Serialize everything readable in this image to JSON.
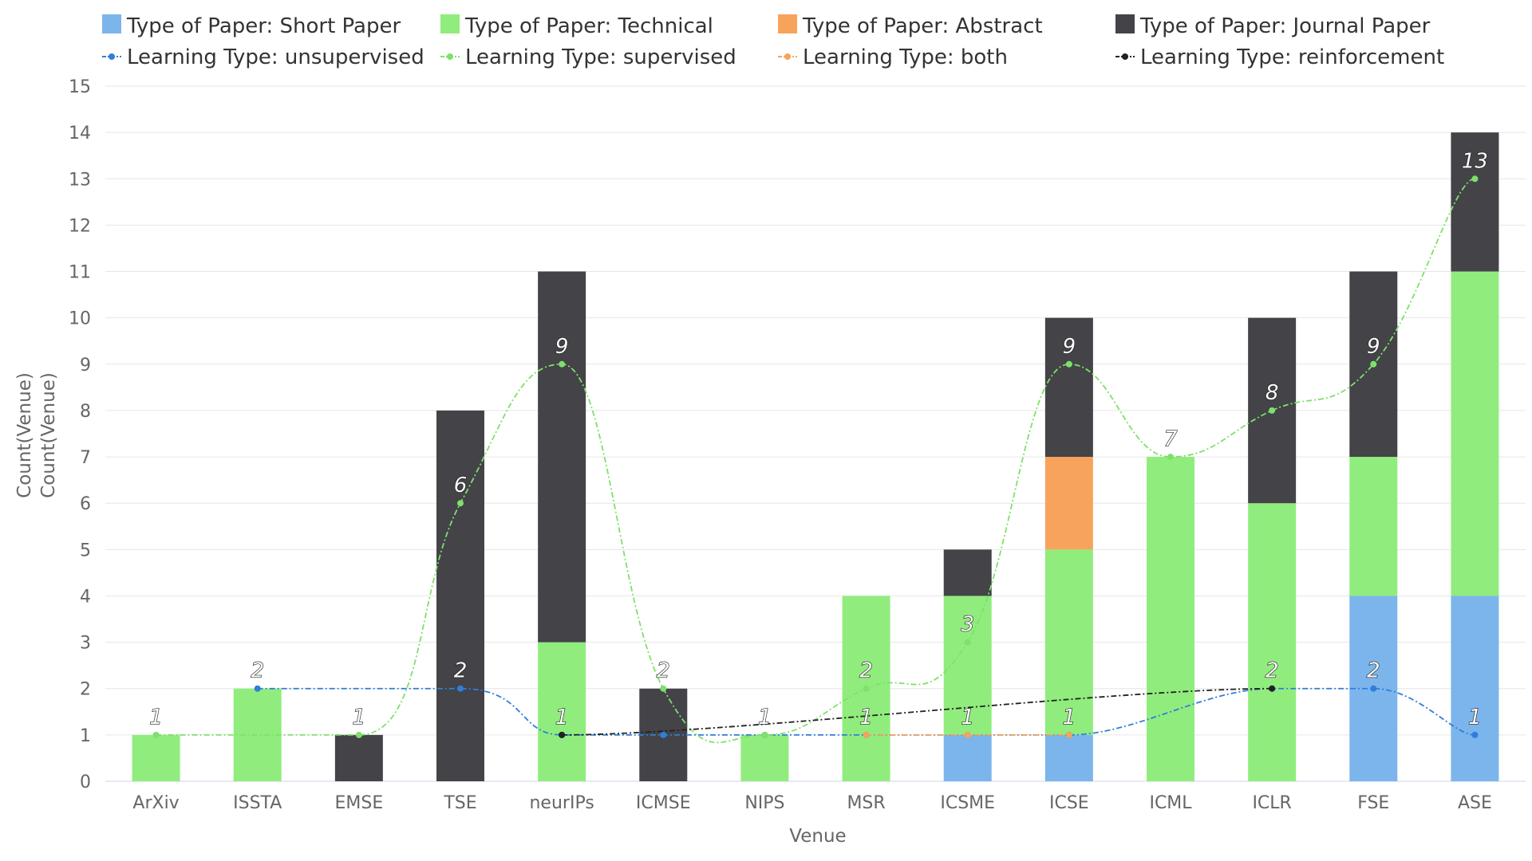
{
  "chart_data": {
    "type": "bar",
    "stacked": true,
    "xlabel": "Venue",
    "ylabel": "Count(Venue)",
    "ylabel_secondary": "Count(Venue)",
    "ylim": [
      0,
      15
    ],
    "yticks": [
      0,
      1,
      2,
      3,
      4,
      5,
      6,
      7,
      8,
      9,
      10,
      11,
      12,
      13,
      14,
      15
    ],
    "grid": true,
    "legend_position": "top",
    "categories": [
      "ArXiv",
      "ISSTA",
      "EMSE",
      "TSE",
      "neurIPs",
      "ICMSE",
      "NIPS",
      "MSR",
      "ICSME",
      "ICSE",
      "ICML",
      "ICLR",
      "FSE",
      "ASE"
    ],
    "series": [
      {
        "name": "Type of Paper: Short Paper",
        "kind": "bar",
        "color": "#7cb5ec",
        "values": [
          0,
          0,
          0,
          0,
          0,
          0,
          0,
          0,
          1,
          1,
          0,
          0,
          4,
          4
        ]
      },
      {
        "name": "Type of Paper: Technical",
        "kind": "bar",
        "color": "#90ed7d",
        "values": [
          1,
          2,
          0,
          0,
          3,
          0,
          1,
          4,
          3,
          4,
          7,
          6,
          3,
          7
        ]
      },
      {
        "name": "Type of Paper: Abstract",
        "kind": "bar",
        "color": "#f7a35c",
        "values": [
          0,
          0,
          0,
          0,
          0,
          0,
          0,
          0,
          0,
          2,
          0,
          0,
          0,
          0
        ]
      },
      {
        "name": "Type of Paper: Journal Paper",
        "kind": "bar",
        "color": "#434348",
        "values": [
          0,
          0,
          1,
          8,
          8,
          2,
          0,
          0,
          1,
          3,
          0,
          4,
          4,
          3
        ]
      }
    ],
    "lines": [
      {
        "name": "Learning Type: unsupervised",
        "color": "#2f7ed8",
        "values": [
          null,
          2,
          null,
          2,
          1,
          1,
          1,
          1,
          1,
          1,
          null,
          2,
          2,
          1
        ]
      },
      {
        "name": "Learning Type: supervised",
        "color": "#7fe06b",
        "values": [
          1,
          null,
          1,
          6,
          9,
          2,
          1,
          2,
          3,
          9,
          7,
          8,
          9,
          13
        ]
      },
      {
        "name": "Learning Type: both",
        "color": "#f7a35c",
        "values": [
          null,
          null,
          null,
          null,
          null,
          null,
          null,
          1,
          1,
          1,
          null,
          null,
          null,
          null
        ]
      },
      {
        "name": "Learning Type: reinforcement",
        "color": "#222222",
        "values": [
          null,
          null,
          null,
          null,
          1,
          null,
          null,
          null,
          null,
          null,
          null,
          2,
          null,
          null
        ]
      }
    ],
    "data_labels": [
      {
        "category": "ArXiv",
        "value": 1,
        "text": "1"
      },
      {
        "category": "ISSTA",
        "value": 2,
        "text": "2"
      },
      {
        "category": "EMSE",
        "value": 1,
        "text": "1"
      },
      {
        "category": "TSE",
        "value": 6,
        "text": "6"
      },
      {
        "category": "TSE",
        "value": 2,
        "text": "2"
      },
      {
        "category": "neurIPs",
        "value": 9,
        "text": "9"
      },
      {
        "category": "neurIPs",
        "value": 1,
        "text": "1"
      },
      {
        "category": "ICMSE",
        "value": 2,
        "text": "2"
      },
      {
        "category": "NIPS",
        "value": 1,
        "text": "1"
      },
      {
        "category": "MSR",
        "value": 2,
        "text": "2"
      },
      {
        "category": "MSR",
        "value": 1,
        "text": "1"
      },
      {
        "category": "ICSME",
        "value": 3,
        "text": "3"
      },
      {
        "category": "ICSME",
        "value": 1,
        "text": "1"
      },
      {
        "category": "ICSE",
        "value": 9,
        "text": "9"
      },
      {
        "category": "ICSE",
        "value": 1,
        "text": "1"
      },
      {
        "category": "ICML",
        "value": 7,
        "text": "7"
      },
      {
        "category": "ICLR",
        "value": 8,
        "text": "8"
      },
      {
        "category": "ICLR",
        "value": 2,
        "text": "2"
      },
      {
        "category": "FSE",
        "value": 9,
        "text": "9"
      },
      {
        "category": "FSE",
        "value": 2,
        "text": "2"
      },
      {
        "category": "ASE",
        "value": 13,
        "text": "13"
      },
      {
        "category": "ASE",
        "value": 1,
        "text": "1"
      }
    ]
  }
}
